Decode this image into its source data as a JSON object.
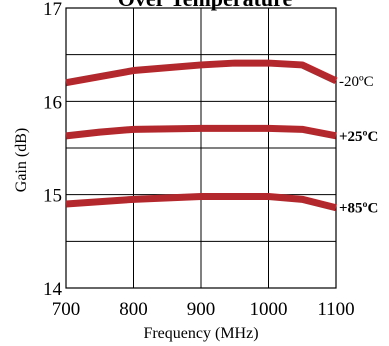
{
  "chart_data": {
    "type": "line",
    "title": "Over Temperature",
    "xlabel": "Frequency (MHz)",
    "ylabel": "Gain (dB)",
    "xlim": [
      700,
      1100
    ],
    "ylim": [
      14,
      17
    ],
    "x_ticks": [
      700,
      800,
      900,
      1000,
      1100
    ],
    "y_ticks": [
      14,
      15,
      16,
      17
    ],
    "grid": true,
    "legend": "labels at right end of each line",
    "line_color": "#b3282d",
    "series": [
      {
        "name": "-20ºC",
        "x": [
          700,
          800,
          900,
          950,
          1000,
          1050,
          1100
        ],
        "y": [
          16.2,
          16.33,
          16.39,
          16.41,
          16.41,
          16.39,
          16.22
        ]
      },
      {
        "name": "+25ºC",
        "x": [
          700,
          750,
          800,
          900,
          1000,
          1050,
          1100
        ],
        "y": [
          15.63,
          15.67,
          15.7,
          15.71,
          15.71,
          15.7,
          15.63
        ]
      },
      {
        "name": "+85ºC",
        "x": [
          700,
          800,
          900,
          1000,
          1050,
          1100
        ],
        "y": [
          14.9,
          14.95,
          14.98,
          14.98,
          14.95,
          14.86
        ]
      }
    ]
  }
}
